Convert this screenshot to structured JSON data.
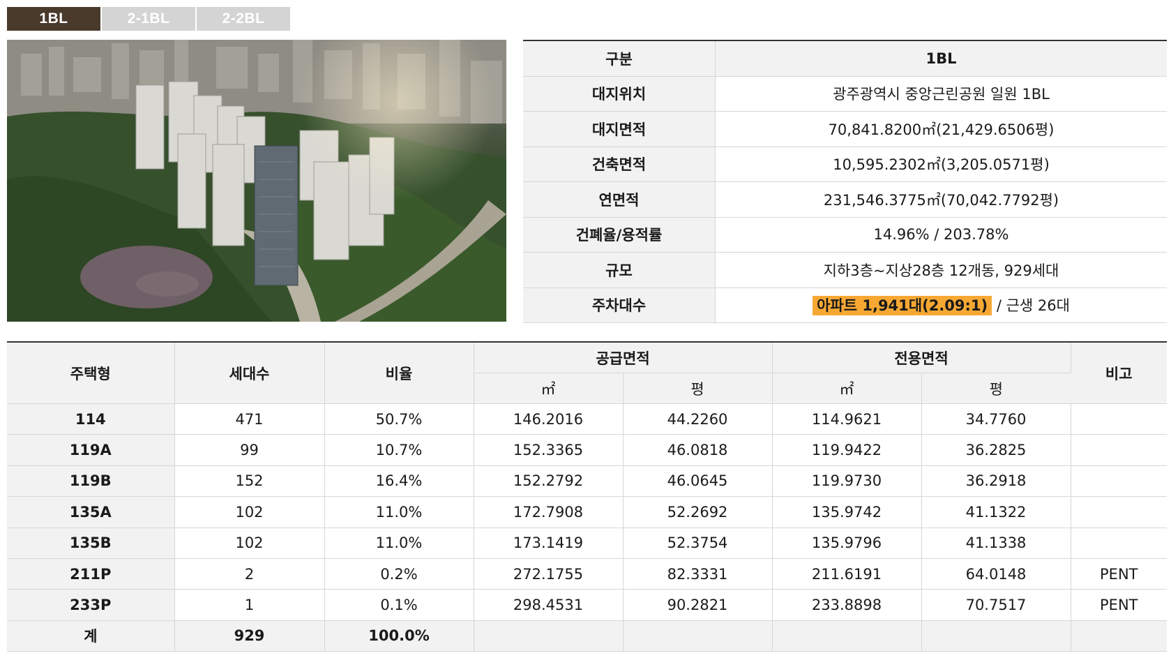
{
  "tabs": [
    {
      "label": "1BL",
      "active": true
    },
    {
      "label": "2-1BL",
      "active": false
    },
    {
      "label": "2-2BL",
      "active": false
    }
  ],
  "info": {
    "header_key": "구분",
    "header_value": "1BL",
    "rows": [
      {
        "key": "대지위치",
        "value": "광주광역시 중앙근린공원 일원 1BL"
      },
      {
        "key": "대지면적",
        "value": "70,841.8200㎡(21,429.6506평)"
      },
      {
        "key": "건축면적",
        "value": "10,595.2302㎡(3,205.0571평)"
      },
      {
        "key": "연면적",
        "value": "231,546.3775㎡(70,042.7792평)"
      },
      {
        "key": "건폐율/용적률",
        "value": "14.96% / 203.78%"
      },
      {
        "key": "규모",
        "value": "지하3층~지상28층 12개동, 929세대"
      }
    ],
    "parking": {
      "key": "주차대수",
      "highlight": "아파트 1,941대(2.09:1)",
      "rest": "/ 근생 26대",
      "highlight_color": "#f7a833"
    }
  },
  "units": {
    "headers": {
      "type": "주택형",
      "households": "세대수",
      "ratio": "비율",
      "supply": "공급면적",
      "exclusive": "전용면적",
      "note": "비고",
      "sqm": "㎡",
      "pyeong": "평"
    },
    "rows": [
      {
        "type": "114",
        "households": "471",
        "ratio": "50.7%",
        "supply_sqm": "146.2016",
        "supply_py": "44.2260",
        "excl_sqm": "114.9621",
        "excl_py": "34.7760",
        "note": ""
      },
      {
        "type": "119A",
        "households": "99",
        "ratio": "10.7%",
        "supply_sqm": "152.3365",
        "supply_py": "46.0818",
        "excl_sqm": "119.9422",
        "excl_py": "36.2825",
        "note": ""
      },
      {
        "type": "119B",
        "households": "152",
        "ratio": "16.4%",
        "supply_sqm": "152.2792",
        "supply_py": "46.0645",
        "excl_sqm": "119.9730",
        "excl_py": "36.2918",
        "note": ""
      },
      {
        "type": "135A",
        "households": "102",
        "ratio": "11.0%",
        "supply_sqm": "172.7908",
        "supply_py": "52.2692",
        "excl_sqm": "135.9742",
        "excl_py": "41.1322",
        "note": ""
      },
      {
        "type": "135B",
        "households": "102",
        "ratio": "11.0%",
        "supply_sqm": "173.1419",
        "supply_py": "52.3754",
        "excl_sqm": "135.9796",
        "excl_py": "41.1338",
        "note": ""
      },
      {
        "type": "211P",
        "households": "2",
        "ratio": "0.2%",
        "supply_sqm": "272.1755",
        "supply_py": "82.3331",
        "excl_sqm": "211.6191",
        "excl_py": "64.0148",
        "note": "PENT"
      },
      {
        "type": "233P",
        "households": "1",
        "ratio": "0.1%",
        "supply_sqm": "298.4531",
        "supply_py": "90.2821",
        "excl_sqm": "233.8898",
        "excl_py": "70.7517",
        "note": "PENT"
      }
    ],
    "total": {
      "type": "계",
      "households": "929",
      "ratio": "100.0%"
    }
  }
}
